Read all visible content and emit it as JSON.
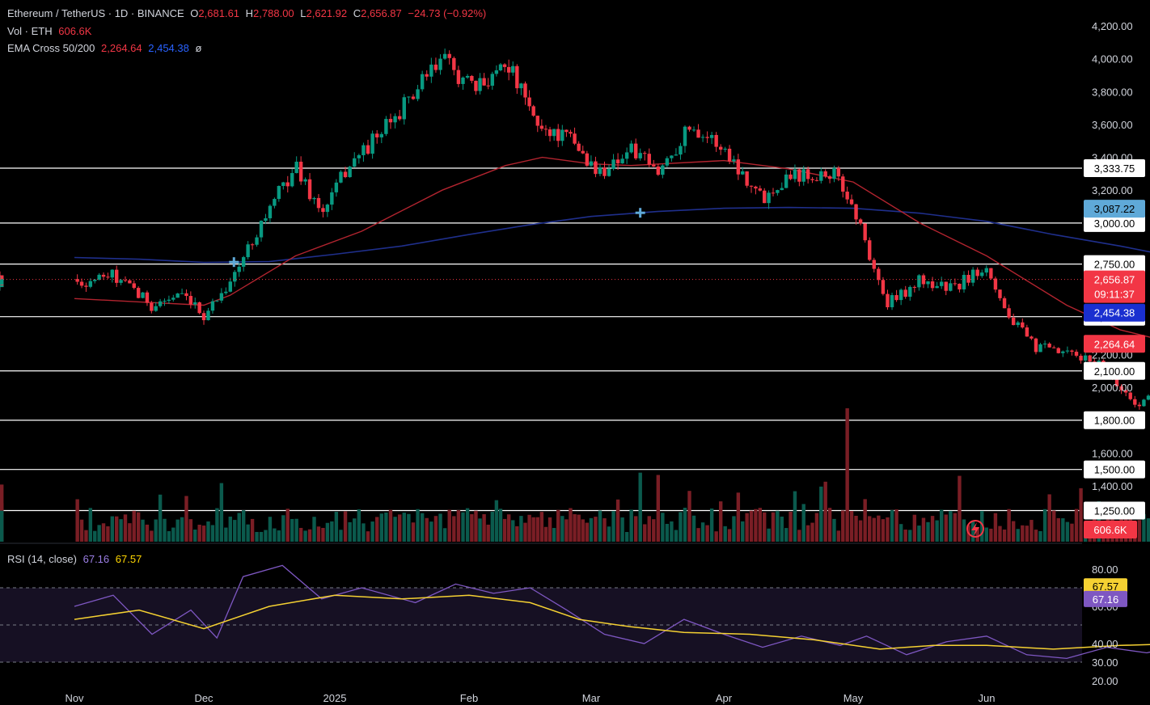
{
  "header": {
    "symbol": "Ethereum / TetherUS · 1D · BINANCE",
    "o_label": "O",
    "o_value": "2,681.61",
    "h_label": "H",
    "h_value": "2,788.00",
    "l_label": "L",
    "l_value": "2,621.92",
    "c_label": "C",
    "c_value": "2,656.87",
    "change": "−24.73 (−0.92%)",
    "vol_label": "Vol · ETH",
    "vol_value": "606.6K",
    "ema_label": "EMA Cross 50/200",
    "ema50_value": "2,264.64",
    "ema200_value": "2,454.38",
    "ema_extra": "ø",
    "rsi_label": "RSI (14, close)",
    "rsi_value": "67.16",
    "rsi_ma_value": "67.57"
  },
  "colors": {
    "background": "#000000",
    "up": "#089981",
    "down": "#f23645",
    "ema50": "#b2242f",
    "ema200": "#1f2f8c",
    "rsi": "#7e57c2",
    "rsi_ma": "#f5d132",
    "hline": "#ffffff"
  },
  "chart_data": [
    {
      "type": "candlestick",
      "title": "Ethereum / TetherUS · 1D · BINANCE",
      "x_ticks": [
        "Nov",
        "Dec",
        "2025",
        "Feb",
        "Mar",
        "Apr",
        "May",
        "Jun"
      ],
      "y_ticks": [
        "1,400.00",
        "1,600.00",
        "2,000.00",
        "2,200.00",
        "3,200.00",
        "3,400.00",
        "3,600.00",
        "3,800.00",
        "4,000.00",
        "4,200.00"
      ],
      "ylim": [
        1270,
        4260
      ],
      "horizontal_levels": [
        "3,333.75",
        "3,000.00",
        "2,750.00",
        "2,430.00",
        "2,100.00",
        "1,800.00",
        "1,500.00",
        "1,250.00"
      ],
      "axis_tags": [
        {
          "value": 3087.22,
          "text": "3,087.22",
          "bg": "#5fa9d8",
          "fg": "#000000"
        },
        {
          "value": 2656.87,
          "text": "2,656.87",
          "sub": "09:11:37",
          "bg": "#f23645",
          "fg": "#ffffff"
        },
        {
          "value": 2454.38,
          "text": "2,454.38",
          "bg": "#1a2fd0",
          "fg": "#ffffff"
        },
        {
          "value": 2264.64,
          "text": "2,264.64",
          "bg": "#f23645",
          "fg": "#ffffff"
        }
      ],
      "volume_tag": {
        "text": "606.6K",
        "bg": "#f23645",
        "fg": "#ffffff"
      },
      "ema_cross_markers": [
        1.23,
        4.37
      ],
      "price_path": [
        [
          0.0,
          2620
        ],
        [
          0.3,
          2680
        ],
        [
          0.6,
          2500
        ],
        [
          0.8,
          2560
        ],
        [
          1.0,
          2440
        ],
        [
          1.25,
          2700
        ],
        [
          1.4,
          2950
        ],
        [
          1.7,
          3350
        ],
        [
          1.9,
          3050
        ],
        [
          2.1,
          3350
        ],
        [
          2.35,
          3550
        ],
        [
          2.6,
          3800
        ],
        [
          2.8,
          4000
        ],
        [
          3.05,
          3800
        ],
        [
          3.3,
          4000
        ],
        [
          3.55,
          3600
        ],
        [
          3.85,
          3500
        ],
        [
          4.05,
          3300
        ],
        [
          4.3,
          3450
        ],
        [
          4.5,
          3300
        ],
        [
          4.75,
          3600
        ],
        [
          5.0,
          3450
        ],
        [
          5.3,
          3150
        ],
        [
          5.5,
          3300
        ],
        [
          5.85,
          3300
        ],
        [
          6.0,
          3100
        ],
        [
          6.25,
          2500
        ],
        [
          6.5,
          2650
        ],
        [
          6.75,
          2600
        ],
        [
          7.0,
          2750
        ],
        [
          7.15,
          2450
        ],
        [
          7.35,
          2250
        ],
        [
          7.6,
          2200
        ],
        [
          7.85,
          2150
        ],
        [
          8.1,
          1900
        ],
        [
          8.3,
          1950
        ],
        [
          8.55,
          2050
        ],
        [
          8.8,
          2000
        ],
        [
          9.0,
          1850
        ],
        [
          9.2,
          1800
        ],
        [
          9.45,
          1760
        ],
        [
          9.6,
          1580
        ],
        [
          9.8,
          1560
        ],
        [
          10.0,
          1630
        ],
        [
          10.3,
          1600
        ],
        [
          10.5,
          1560
        ],
        [
          10.6,
          1740
        ],
        [
          10.9,
          1790
        ],
        [
          11.2,
          1800
        ],
        [
          11.5,
          1800
        ],
        [
          11.65,
          1830
        ],
        [
          11.75,
          2350
        ],
        [
          11.95,
          2600
        ],
        [
          12.2,
          2450
        ],
        [
          12.5,
          2580
        ],
        [
          12.75,
          2500
        ],
        [
          13.0,
          2550
        ],
        [
          13.25,
          2650
        ]
      ],
      "ema50_path": [
        [
          0.0,
          2540
        ],
        [
          0.5,
          2520
        ],
        [
          1.0,
          2500
        ],
        [
          1.2,
          2560
        ],
        [
          1.7,
          2800
        ],
        [
          2.2,
          2950
        ],
        [
          2.8,
          3200
        ],
        [
          3.3,
          3350
        ],
        [
          3.6,
          3400
        ],
        [
          4.0,
          3360
        ],
        [
          4.3,
          3350
        ],
        [
          5.0,
          3380
        ],
        [
          5.5,
          3330
        ],
        [
          6.0,
          3250
        ],
        [
          6.5,
          3000
        ],
        [
          7.0,
          2800
        ],
        [
          7.6,
          2500
        ],
        [
          8.0,
          2350
        ],
        [
          8.5,
          2250
        ],
        [
          9.0,
          2100
        ],
        [
          9.5,
          1950
        ],
        [
          10.0,
          1880
        ],
        [
          10.5,
          1860
        ],
        [
          11.0,
          1840
        ],
        [
          11.5,
          1820
        ],
        [
          11.75,
          1840
        ],
        [
          12.0,
          1960
        ],
        [
          12.5,
          2120
        ],
        [
          13.0,
          2230
        ],
        [
          13.25,
          2264
        ]
      ],
      "ema200_path": [
        [
          0.0,
          2790
        ],
        [
          0.5,
          2780
        ],
        [
          1.0,
          2760
        ],
        [
          1.5,
          2765
        ],
        [
          2.0,
          2810
        ],
        [
          2.5,
          2860
        ],
        [
          3.0,
          2930
        ],
        [
          3.5,
          2990
        ],
        [
          4.0,
          3040
        ],
        [
          4.5,
          3070
        ],
        [
          5.0,
          3090
        ],
        [
          5.5,
          3095
        ],
        [
          6.0,
          3090
        ],
        [
          6.5,
          3060
        ],
        [
          7.0,
          3010
        ],
        [
          7.5,
          2930
        ],
        [
          8.0,
          2860
        ],
        [
          8.5,
          2780
        ],
        [
          9.0,
          2710
        ],
        [
          9.5,
          2630
        ],
        [
          10.0,
          2560
        ],
        [
          10.5,
          2510
        ],
        [
          11.0,
          2480
        ],
        [
          11.5,
          2460
        ],
        [
          12.0,
          2455
        ],
        [
          12.5,
          2454
        ],
        [
          13.0,
          2454
        ],
        [
          13.25,
          2454
        ]
      ],
      "channel": {
        "upper": [
          [
            11.67,
            2740
          ],
          [
            13.05,
            2750
          ],
          [
            13.28,
            2790
          ]
        ],
        "lower": [
          [
            11.67,
            2740
          ],
          [
            11.67,
            2220
          ],
          [
            11.8,
            2360
          ],
          [
            13.28,
            2480
          ]
        ]
      }
    },
    {
      "type": "bar",
      "title": "Vol · ETH",
      "pattern": "daily volume bars",
      "last_value": "606.6K"
    },
    {
      "type": "line",
      "title": "RSI (14, close)",
      "y_ticks": [
        "20.00",
        "30.00",
        "40.00",
        "60.00",
        "70.00",
        "80.00"
      ],
      "ylim": [
        18,
        84
      ],
      "bands": [
        30,
        50,
        70
      ],
      "series": [
        {
          "name": "RSI",
          "points": [
            [
              0.0,
              60
            ],
            [
              0.3,
              66
            ],
            [
              0.6,
              45
            ],
            [
              0.9,
              58
            ],
            [
              1.1,
              43
            ],
            [
              1.3,
              76
            ],
            [
              1.6,
              82
            ],
            [
              1.9,
              64
            ],
            [
              2.2,
              70
            ],
            [
              2.6,
              62
            ],
            [
              2.9,
              72
            ],
            [
              3.2,
              67
            ],
            [
              3.5,
              70
            ],
            [
              3.8,
              58
            ],
            [
              4.1,
              45
            ],
            [
              4.4,
              40
            ],
            [
              4.7,
              53
            ],
            [
              5.0,
              45
            ],
            [
              5.3,
              38
            ],
            [
              5.6,
              44
            ],
            [
              5.9,
              39
            ],
            [
              6.1,
              44
            ],
            [
              6.4,
              34
            ],
            [
              6.7,
              41
            ],
            [
              7.0,
              44
            ],
            [
              7.3,
              34
            ],
            [
              7.6,
              32
            ],
            [
              7.9,
              38
            ],
            [
              8.2,
              35
            ],
            [
              8.5,
              40
            ],
            [
              8.8,
              43
            ],
            [
              9.1,
              37
            ],
            [
              9.4,
              36
            ],
            [
              9.6,
              30
            ],
            [
              9.9,
              42
            ],
            [
              10.2,
              38
            ],
            [
              10.5,
              41
            ],
            [
              10.8,
              53
            ],
            [
              11.1,
              55
            ],
            [
              11.4,
              58
            ],
            [
              11.7,
              76
            ],
            [
              11.9,
              83
            ],
            [
              12.2,
              76
            ],
            [
              12.5,
              70
            ],
            [
              12.75,
              64
            ],
            [
              13.0,
              66
            ],
            [
              13.25,
              67.16
            ]
          ]
        },
        {
          "name": "MA",
          "points": [
            [
              0.0,
              53
            ],
            [
              0.5,
              58
            ],
            [
              1.0,
              48
            ],
            [
              1.5,
              60
            ],
            [
              2.0,
              66
            ],
            [
              2.5,
              64
            ],
            [
              3.0,
              66
            ],
            [
              3.5,
              62
            ],
            [
              3.9,
              53
            ],
            [
              4.3,
              49
            ],
            [
              4.7,
              46
            ],
            [
              5.2,
              45
            ],
            [
              5.7,
              42
            ],
            [
              6.2,
              37
            ],
            [
              6.6,
              39
            ],
            [
              7.0,
              39
            ],
            [
              7.5,
              37
            ],
            [
              8.0,
              39
            ],
            [
              8.5,
              40
            ],
            [
              9.0,
              40
            ],
            [
              9.5,
              38
            ],
            [
              10.0,
              39
            ],
            [
              10.5,
              41
            ],
            [
              10.8,
              46
            ],
            [
              11.2,
              51
            ],
            [
              11.5,
              56
            ],
            [
              11.8,
              62
            ],
            [
              12.1,
              70
            ],
            [
              12.5,
              73
            ],
            [
              12.8,
              71
            ],
            [
              13.25,
              67.57
            ]
          ]
        }
      ]
    }
  ]
}
